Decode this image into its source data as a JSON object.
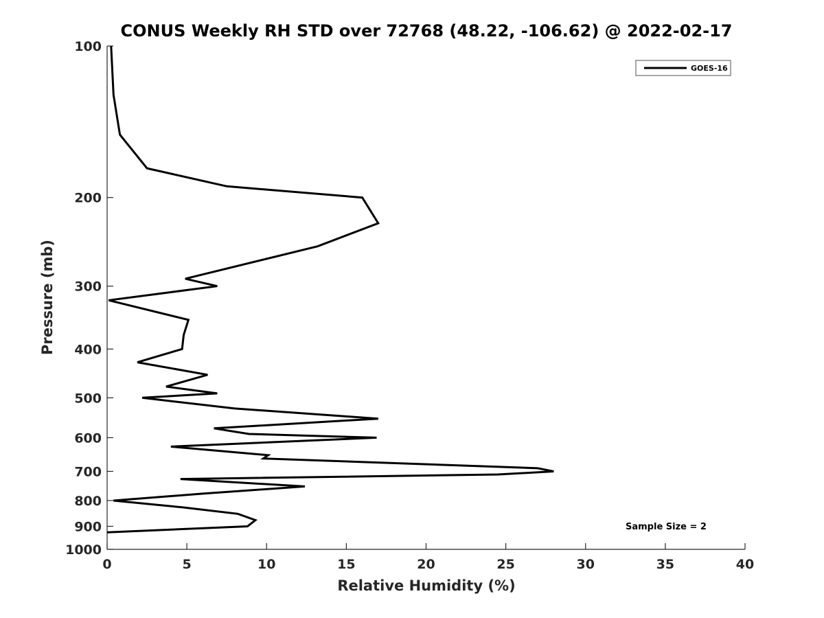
{
  "chart_data": {
    "type": "line",
    "title": "CONUS Weekly RH STD over 72768 (48.22, -106.62) @ 2022-02-17",
    "xlabel": "Relative Humidity (%)",
    "ylabel": "Pressure (mb)",
    "xlim": [
      0,
      40
    ],
    "ylim": [
      100,
      1000
    ],
    "y_scale": "log",
    "y_reversed": true,
    "x_ticks": [
      "0",
      "5",
      "10",
      "15",
      "20",
      "25",
      "30",
      "35",
      "40"
    ],
    "y_ticks": [
      "100",
      "200",
      "300",
      "400",
      "500",
      "600",
      "700",
      "800",
      "900",
      "1000"
    ],
    "grid": false,
    "legend_position": "top-right",
    "annotation": "Sample Size = 2",
    "series": [
      {
        "name": "GOES-16",
        "color": "#000000",
        "points": [
          [
            0.25,
            100
          ],
          [
            0.4,
            125
          ],
          [
            0.8,
            150
          ],
          [
            2.5,
            175
          ],
          [
            7.5,
            190
          ],
          [
            16.0,
            200
          ],
          [
            17.0,
            225
          ],
          [
            13.2,
            250
          ],
          [
            4.9,
            290
          ],
          [
            6.9,
            300
          ],
          [
            0.1,
            320
          ],
          [
            5.1,
            350
          ],
          [
            4.8,
            375
          ],
          [
            4.7,
            400
          ],
          [
            1.9,
            425
          ],
          [
            6.3,
            450
          ],
          [
            3.7,
            475
          ],
          [
            6.9,
            490
          ],
          [
            2.2,
            500
          ],
          [
            8.0,
            525
          ],
          [
            17.0,
            550
          ],
          [
            6.7,
            575
          ],
          [
            8.9,
            590
          ],
          [
            16.9,
            600
          ],
          [
            4.0,
            625
          ],
          [
            10.1,
            650
          ],
          [
            9.8,
            660
          ],
          [
            27.0,
            690
          ],
          [
            28.0,
            700
          ],
          [
            24.5,
            710
          ],
          [
            4.6,
            725
          ],
          [
            12.4,
            750
          ],
          [
            6.0,
            775
          ],
          [
            0.4,
            800
          ],
          [
            4.7,
            825
          ],
          [
            8.2,
            850
          ],
          [
            9.3,
            875
          ],
          [
            8.8,
            900
          ],
          [
            0.0,
            925
          ]
        ]
      }
    ]
  }
}
